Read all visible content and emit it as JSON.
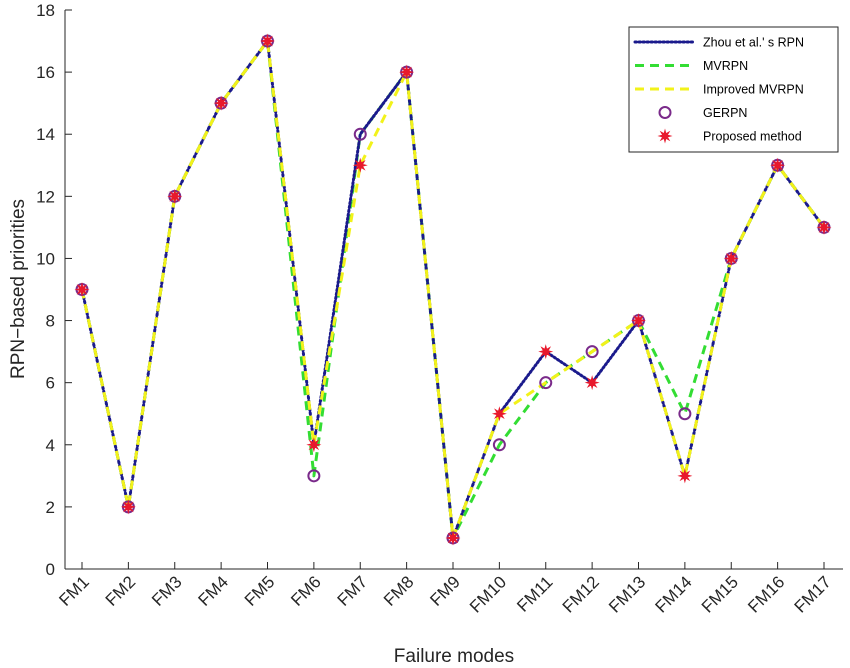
{
  "chart_data": {
    "type": "line",
    "xlabel": "Failure modes",
    "ylabel": "RPN−based priorities",
    "categories": [
      "FM1",
      "FM2",
      "FM3",
      "FM4",
      "FM5",
      "FM6",
      "FM7",
      "FM8",
      "FM9",
      "FM10",
      "FM11",
      "FM12",
      "FM13",
      "FM14",
      "FM15",
      "FM16",
      "FM17"
    ],
    "ylim": [
      0,
      18
    ],
    "yticks": [
      0,
      2,
      4,
      6,
      8,
      10,
      12,
      14,
      16,
      18
    ],
    "legend_position": "top-right",
    "grid": false,
    "series": [
      {
        "name": "Zhou et al.' s RPN",
        "style": "dotted-line",
        "color": "#1a1a8c",
        "values": [
          9,
          2,
          12,
          15,
          17,
          4,
          14,
          16,
          1,
          5,
          7,
          6,
          8,
          3,
          10,
          13,
          11
        ]
      },
      {
        "name": "MVRPN",
        "style": "dashed-line",
        "color": "#33dd33",
        "values": [
          9,
          2,
          12,
          15,
          17,
          3,
          14,
          16,
          1,
          4,
          6,
          7,
          8,
          5,
          10,
          13,
          11
        ]
      },
      {
        "name": "Improved MVRPN",
        "style": "dashed-line",
        "color": "#f2f21a",
        "values": [
          9,
          2,
          12,
          15,
          17,
          4,
          13,
          16,
          1,
          5,
          6,
          7,
          8,
          3,
          10,
          13,
          11
        ]
      },
      {
        "name": "GERPN",
        "style": "circle-marker",
        "color": "#7a2a8a",
        "values": [
          9,
          2,
          12,
          15,
          17,
          3,
          14,
          16,
          1,
          4,
          6,
          7,
          8,
          5,
          10,
          13,
          11
        ]
      },
      {
        "name": "Proposed method",
        "style": "star-marker",
        "color": "#e8192c",
        "values": [
          9,
          2,
          12,
          15,
          17,
          4,
          13,
          16,
          1,
          5,
          7,
          6,
          8,
          3,
          10,
          13,
          11
        ]
      }
    ]
  }
}
